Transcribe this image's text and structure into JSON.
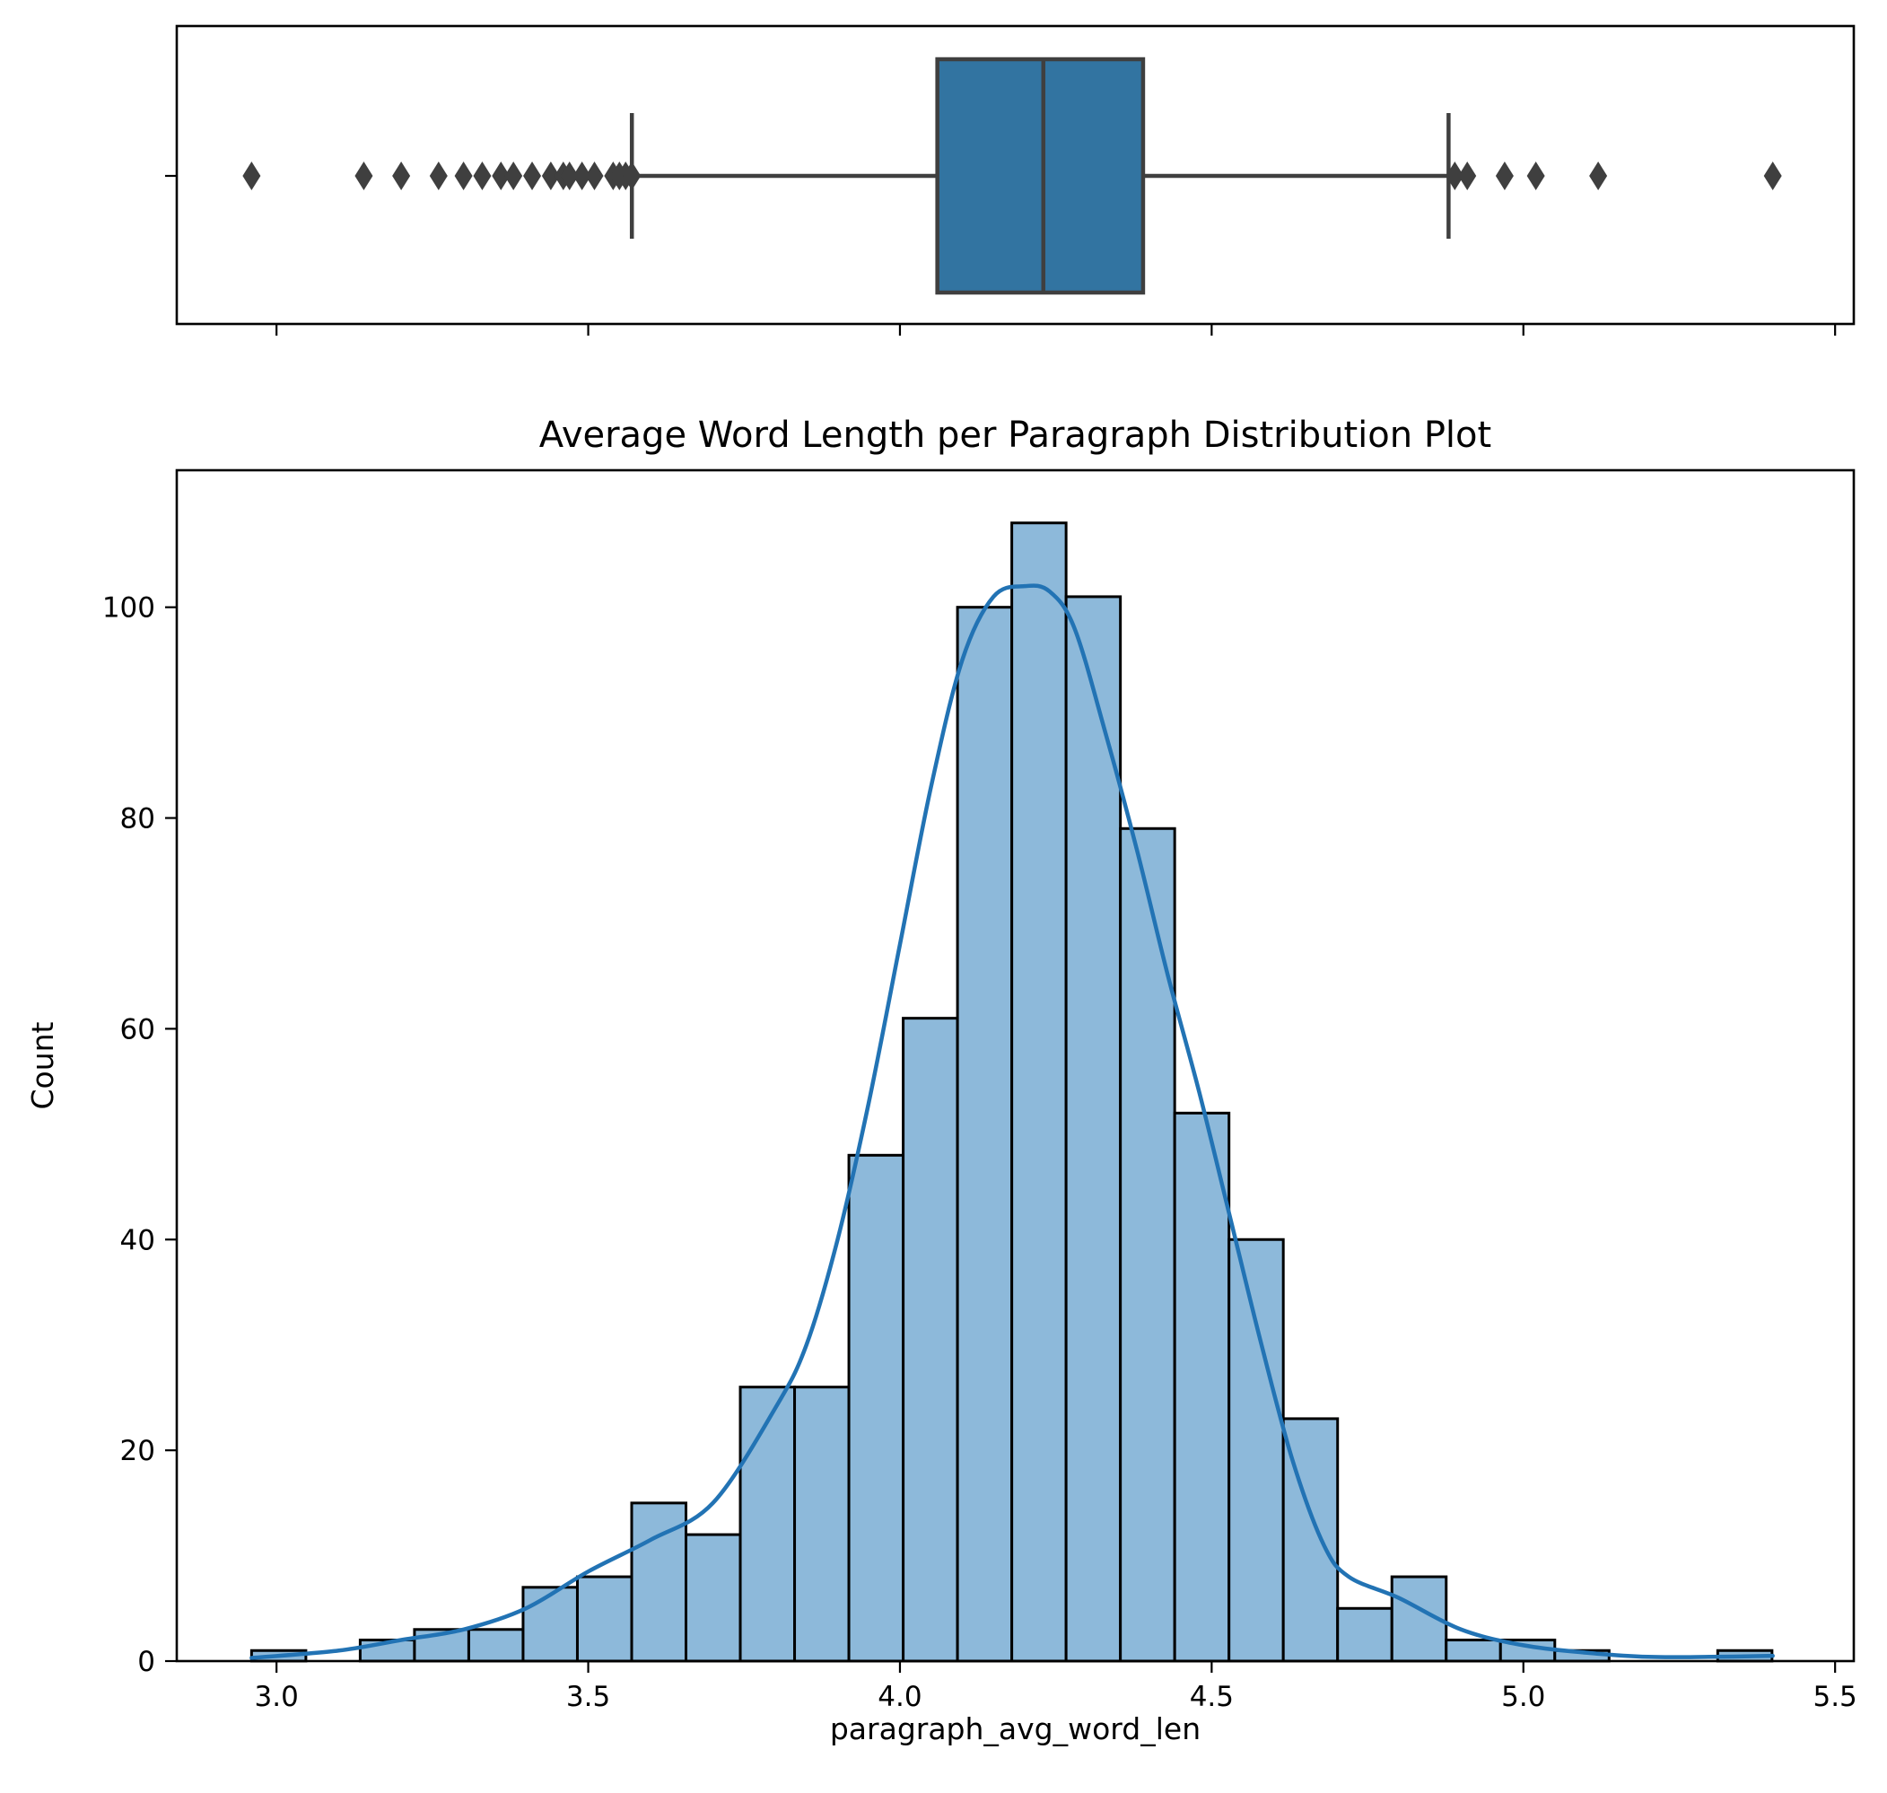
{
  "chart_data": [
    {
      "type": "box",
      "orientation": "horizontal",
      "xlim": [
        2.84,
        5.53
      ],
      "xticks": [
        "3.0",
        "3.5",
        "4.0",
        "4.5",
        "5.0",
        "5.5"
      ],
      "xtick_values": [
        3.0,
        3.5,
        4.0,
        4.5,
        5.0,
        5.5
      ],
      "whisker_low": 3.57,
      "q1": 4.06,
      "median": 4.23,
      "q3": 4.39,
      "whisker_high": 4.88,
      "outliers": [
        2.96,
        3.14,
        3.2,
        3.26,
        3.3,
        3.33,
        3.36,
        3.38,
        3.41,
        3.44,
        3.46,
        3.47,
        3.49,
        3.51,
        3.54,
        3.55,
        3.56,
        3.57,
        4.89,
        4.91,
        4.97,
        5.02,
        5.12,
        5.4
      ],
      "color_box": "#3274a1",
      "color_lines": "#3f3f3f"
    },
    {
      "type": "histogram",
      "title": "Average Word Length per Paragraph Distribution Plot",
      "xlabel": "paragraph_avg_word_len",
      "ylabel": "Count",
      "xlim": [
        2.84,
        5.53
      ],
      "ylim": [
        0,
        113
      ],
      "xticks": [
        "3.0",
        "3.5",
        "4.0",
        "4.5",
        "5.0",
        "5.5"
      ],
      "xtick_values": [
        3.0,
        3.5,
        4.0,
        4.5,
        5.0,
        5.5
      ],
      "yticks": [
        "0",
        "20",
        "40",
        "60",
        "80",
        "100"
      ],
      "ytick_values": [
        0,
        20,
        40,
        60,
        80,
        100
      ],
      "bin_start": 2.96,
      "bin_width": 0.0871,
      "counts": [
        1,
        0,
        2,
        3,
        3,
        7,
        8,
        15,
        12,
        26,
        26,
        48,
        61,
        100,
        108,
        101,
        79,
        52,
        40,
        23,
        5,
        8,
        2,
        2,
        1,
        0,
        0,
        1
      ],
      "kde": {
        "x": [
          2.96,
          3.1,
          3.2,
          3.3,
          3.4,
          3.5,
          3.6,
          3.7,
          3.8,
          3.85,
          3.9,
          3.95,
          4.0,
          4.05,
          4.1,
          4.15,
          4.2,
          4.24,
          4.28,
          4.33,
          4.38,
          4.43,
          4.48,
          4.53,
          4.58,
          4.63,
          4.68,
          4.72,
          4.8,
          4.9,
          5.0,
          5.1,
          5.2,
          5.3,
          5.4
        ],
        "y": [
          0.3,
          1,
          2,
          3,
          5,
          8.5,
          11.5,
          15,
          24,
          30,
          40,
          53,
          68,
          83,
          95,
          101,
          102,
          101.5,
          98,
          88,
          77,
          65,
          54,
          42,
          30,
          19,
          11,
          8,
          6,
          3,
          1.5,
          0.8,
          0.4,
          0.4,
          0.5
        ]
      },
      "color_bar": "#8db9da",
      "color_edge": "#000000",
      "color_line": "#2273b4"
    }
  ]
}
